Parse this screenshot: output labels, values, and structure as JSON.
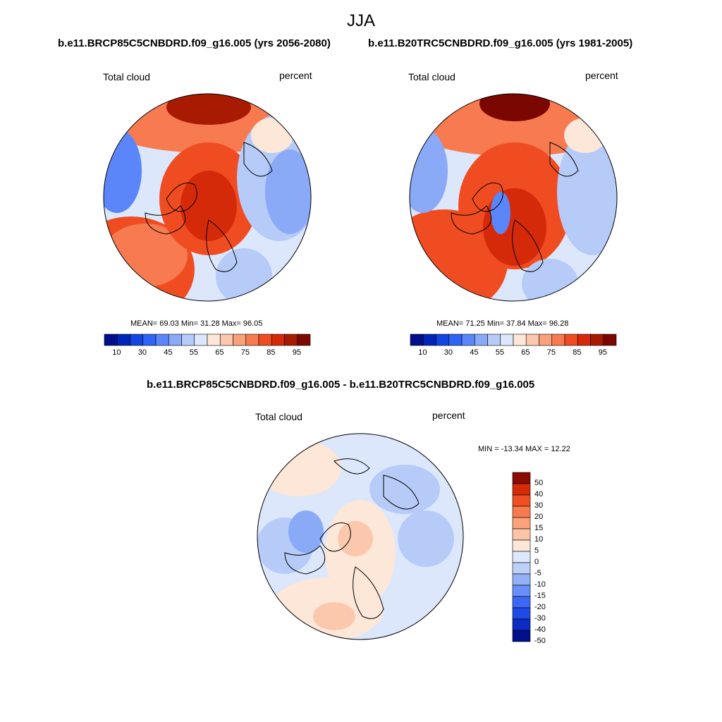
{
  "title": "JJA",
  "panels": [
    {
      "case_title": "b.e11.BRCP85C5CNBDRD.f09_g16.005 (yrs 2056-2080)",
      "field": "Total cloud",
      "units": "percent",
      "stats": {
        "mean": "69.03",
        "min": "31.28",
        "max": "96.05"
      },
      "stats_text": "MEAN=  69.03  Min=  31.28  Max=  96.05"
    },
    {
      "case_title": "b.e11.B20TRC5CNBDRD.f09_g16.005 (yrs 1981-2005)",
      "field": "Total cloud",
      "units": "percent",
      "stats": {
        "mean": "71.25",
        "min": "37.84",
        "max": "96.28"
      },
      "stats_text": "MEAN=  71.25  Min=  37.84  Max=  96.28"
    },
    {
      "case_title": "b.e11.BRCP85C5CNBDRD.f09_g16.005 - b.e11.B20TRC5CNBDRD.f09_g16.005",
      "field": "Total cloud",
      "units": "percent",
      "stats": {
        "min": "-13.34",
        "max": "12.22"
      },
      "stats_text": "MIN = -13.34 MAX =  12.22"
    }
  ],
  "colorbar_abs": {
    "colors": [
      "#000f8a",
      "#0024b8",
      "#1545e0",
      "#2f63f5",
      "#5a86fa",
      "#8aaaf8",
      "#b6cbf8",
      "#dce7fb",
      "#fde7d8",
      "#fbc8ad",
      "#f9a07c",
      "#f77a50",
      "#f04c22",
      "#d42a0a",
      "#a81a02",
      "#7a0800"
    ],
    "tick_labels": [
      "10",
      "30",
      "45",
      "55",
      "65",
      "75",
      "85",
      "95"
    ]
  },
  "colorbar_diff": {
    "colors": [
      "#000f8a",
      "#0a2cc4",
      "#1f4ae6",
      "#3c68f5",
      "#6990fa",
      "#93b1f7",
      "#bcd0f8",
      "#dde8fb",
      "#fde7d8",
      "#fcc6a6",
      "#fba27a",
      "#f77c4d",
      "#ef4f22",
      "#d42c08",
      "#8a0c02"
    ],
    "tick_labels": [
      "50",
      "40",
      "30",
      "20",
      "15",
      "10",
      "5",
      "0",
      "-5",
      "-10",
      "-15",
      "-20",
      "-30",
      "-40",
      "-50"
    ]
  }
}
